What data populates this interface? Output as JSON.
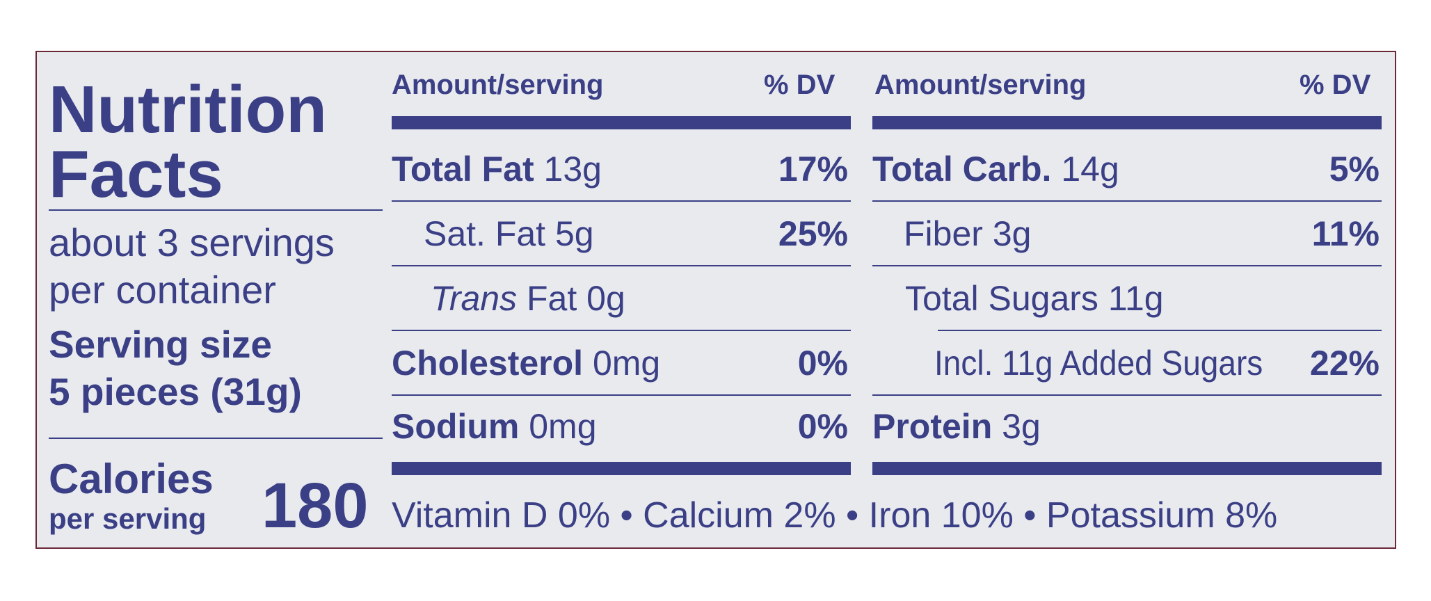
{
  "colors": {
    "ink": "#3a3f86",
    "panel": "#e9eaee",
    "border": "#6a2838"
  },
  "panel": {
    "title_line1": "Nutrition",
    "title_line2": "Facts",
    "servings_line1": "about 3 servings",
    "servings_line2": "per container",
    "serving_size_label": "Serving size",
    "serving_size_value": "5 pieces (31g)",
    "calories_label": "Calories",
    "calories_sub": "per serving",
    "calories_value": "180"
  },
  "left_table": {
    "header_amount": "Amount/serving",
    "header_dv": "% DV",
    "rows": [
      {
        "name": "Total Fat",
        "amount": "13g",
        "dv": "17%"
      },
      {
        "name": "Sat. Fat",
        "amount": "5g",
        "dv": "25%"
      },
      {
        "name_italic": "Trans",
        "name": "Fat",
        "amount": "0g",
        "dv": ""
      },
      {
        "name": "Cholesterol",
        "amount": "0mg",
        "dv": "0%"
      },
      {
        "name": "Sodium",
        "amount": "0mg",
        "dv": "0%"
      }
    ]
  },
  "right_table": {
    "header_amount": "Amount/serving",
    "header_dv": "% DV",
    "rows": [
      {
        "name": "Total Carb.",
        "amount": "14g",
        "dv": "5%"
      },
      {
        "name": "Fiber",
        "amount": "3g",
        "dv": "11%"
      },
      {
        "name": "Total Sugars",
        "amount": "11g",
        "dv": ""
      },
      {
        "name": "Incl. 11g Added Sugars",
        "amount": "",
        "dv": "22%"
      },
      {
        "name": "Protein",
        "amount": "3g",
        "dv": ""
      }
    ]
  },
  "footer": "Vitamin D 0% • Calcium 2% • Iron 10% • Potassium 8%"
}
